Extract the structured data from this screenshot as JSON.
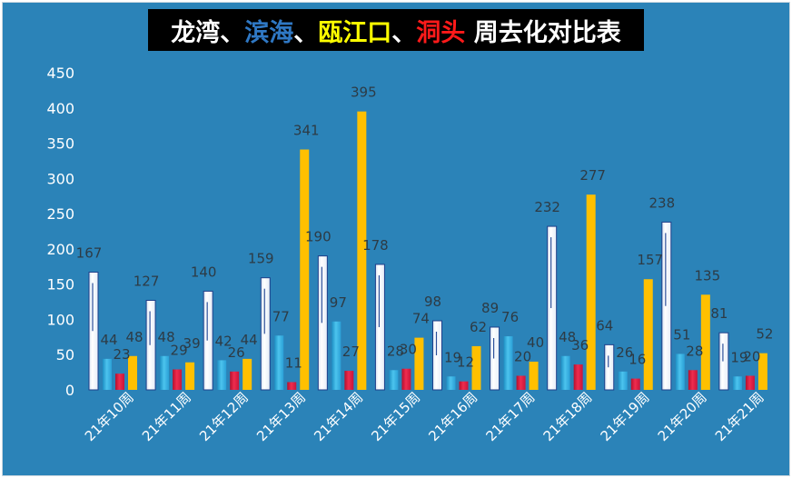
{
  "title": {
    "parts": [
      {
        "text": "龙湾",
        "color": "#ffffff"
      },
      {
        "text": "、",
        "color": "#ffffff"
      },
      {
        "text": "滨海",
        "color": "#2f78c4"
      },
      {
        "text": "、",
        "color": "#ffffff"
      },
      {
        "text": "瓯江口",
        "color": "#ffff00"
      },
      {
        "text": "、",
        "color": "#ffffff"
      },
      {
        "text": "洞头",
        "color": "#ff1a1a"
      },
      {
        "text": " 周去化对比表",
        "color": "#ffffff"
      }
    ]
  },
  "colors": {
    "background": "#2b83b8",
    "longwan": "#ffffff",
    "binhai": "#33b1e0",
    "oujiangkou": "#ffc000",
    "dongtou": "#e01a3c"
  },
  "chart_data": {
    "type": "bar",
    "categories": [
      "21年10周",
      "21年11周",
      "21年12周",
      "21年13周",
      "21年14周",
      "21年15周",
      "21年16周",
      "21年17周",
      "21年18周",
      "21年19周",
      "21年20周",
      "21年21周"
    ],
    "series": [
      {
        "key": "longwan",
        "values": [
          167,
          127,
          140,
          159,
          190,
          178,
          98,
          89,
          232,
          64,
          238,
          81
        ]
      },
      {
        "key": "binhai",
        "values": [
          44,
          48,
          42,
          77,
          97,
          28,
          19,
          76,
          48,
          26,
          51,
          19
        ]
      },
      {
        "key": "dongtou",
        "values": [
          23,
          29,
          26,
          11,
          27,
          30,
          12,
          20,
          36,
          16,
          28,
          20
        ]
      },
      {
        "key": "oujiangkou",
        "values": [
          48,
          39,
          44,
          341,
          395,
          74,
          62,
          40,
          277,
          157,
          135,
          52
        ]
      }
    ],
    "y_ticks": [
      0,
      50,
      100,
      150,
      200,
      250,
      300,
      350,
      400,
      450
    ],
    "ylim": [
      0,
      450
    ],
    "legend": "none",
    "grid": false
  }
}
